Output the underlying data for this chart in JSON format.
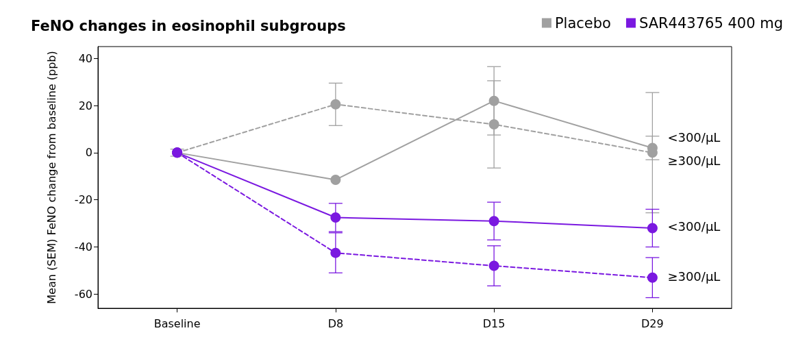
{
  "chart_data": {
    "type": "line",
    "title": "FeNO changes in eosinophil subgroups",
    "ylabel": "Mean (SEM) FeNO change from baseline (ppb)",
    "categories": [
      "Baseline",
      "D8",
      "D15",
      "D29"
    ],
    "ylim": [
      -66,
      45
    ],
    "yticks": [
      -60,
      -40,
      -20,
      0,
      20,
      40
    ],
    "series": [
      {
        "name": "Placebo",
        "color": "#a0a0a0",
        "line_style": "solid",
        "values": [
          0,
          -11.5,
          22,
          2
        ],
        "errors": [
          1.5,
          null,
          14.5,
          5
        ]
      },
      {
        "color": "#a0a0a0",
        "line_style": "dashed",
        "values": [
          0,
          20.5,
          12,
          0
        ],
        "errors": [
          null,
          9,
          18.5,
          25.5
        ]
      },
      {
        "name": "SAR443765 400 mg",
        "color": "#7a18e0",
        "line_style": "solid",
        "values": [
          0,
          -27.5,
          -29,
          -32
        ],
        "errors": [
          null,
          6,
          8,
          8
        ]
      },
      {
        "color": "#7a18e0",
        "line_style": "dashed",
        "values": [
          0,
          -42.5,
          -48,
          -53
        ],
        "errors": [
          null,
          8.5,
          8.5,
          8.5
        ]
      }
    ],
    "annotations": [
      "<300/μL",
      "≥300/μL",
      "<300/μL",
      "≥300/μL"
    ],
    "marker": "circle",
    "grid": false,
    "legend": "top right"
  }
}
